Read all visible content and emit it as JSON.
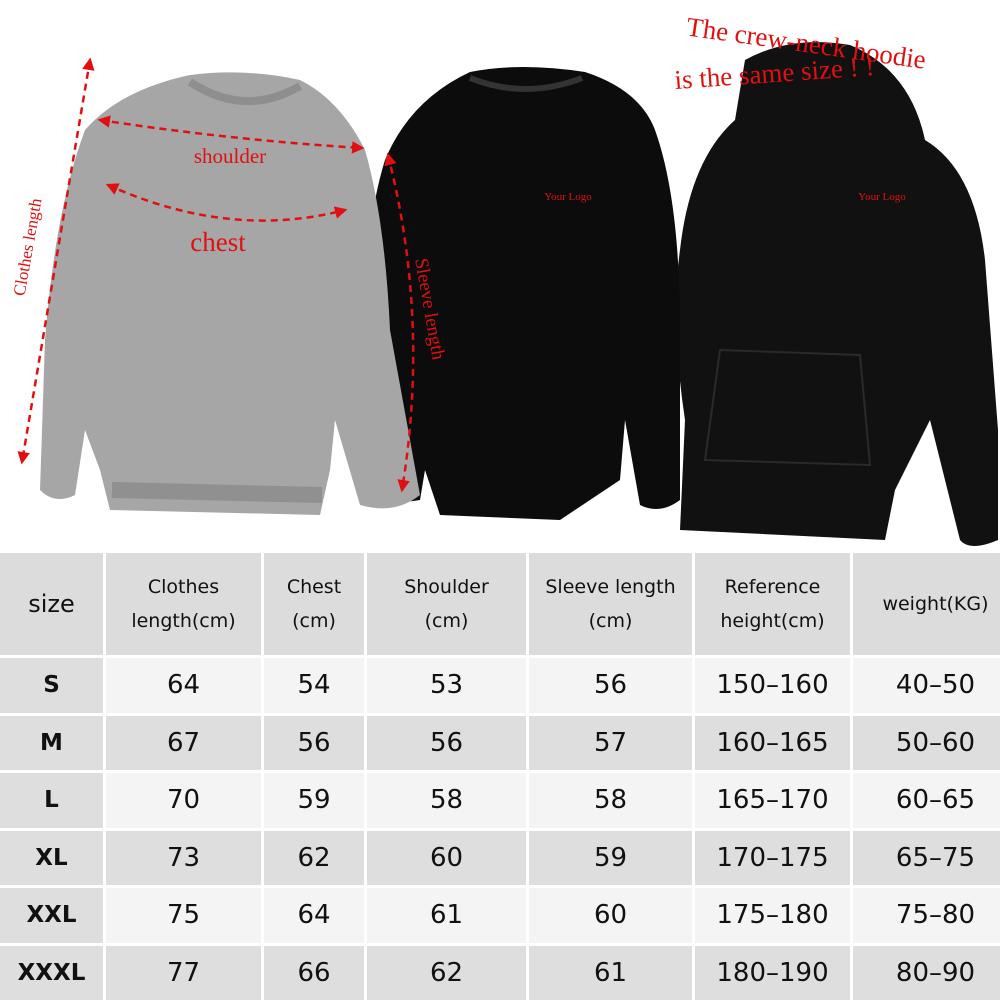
{
  "annotations": {
    "shoulder": "shoulder",
    "chest": "chest",
    "clothes_length": "Clothes length",
    "sleeve_length": "Sleeve length",
    "logo_sweatshirt": "Your Logo",
    "logo_hoodie": "Your Logo",
    "hoodie_note": [
      "The crew-neck hoodie",
      "is the same size ! !"
    ]
  },
  "table": {
    "header": [
      [
        "size"
      ],
      [
        "Clothes",
        "length(cm)"
      ],
      [
        "Chest",
        "(cm)"
      ],
      [
        "Shoulder",
        "(cm)"
      ],
      [
        "Sleeve length",
        "(cm)"
      ],
      [
        "Reference",
        "height(cm)"
      ],
      [
        "weight(KG)"
      ]
    ],
    "rows": [
      [
        "S",
        "64",
        "54",
        "53",
        "56",
        "150–160",
        "40–50"
      ],
      [
        "M",
        "67",
        "56",
        "56",
        "57",
        "160–165",
        "50–60"
      ],
      [
        "L",
        "70",
        "59",
        "58",
        "58",
        "165–170",
        "60–65"
      ],
      [
        "XL",
        "73",
        "62",
        "60",
        "59",
        "170–175",
        "65–75"
      ],
      [
        "XXL",
        "75",
        "64",
        "61",
        "60",
        "175–180",
        "75–80"
      ],
      [
        "XXXL",
        "77",
        "66",
        "62",
        "61",
        "180–190",
        "80–90"
      ]
    ]
  }
}
